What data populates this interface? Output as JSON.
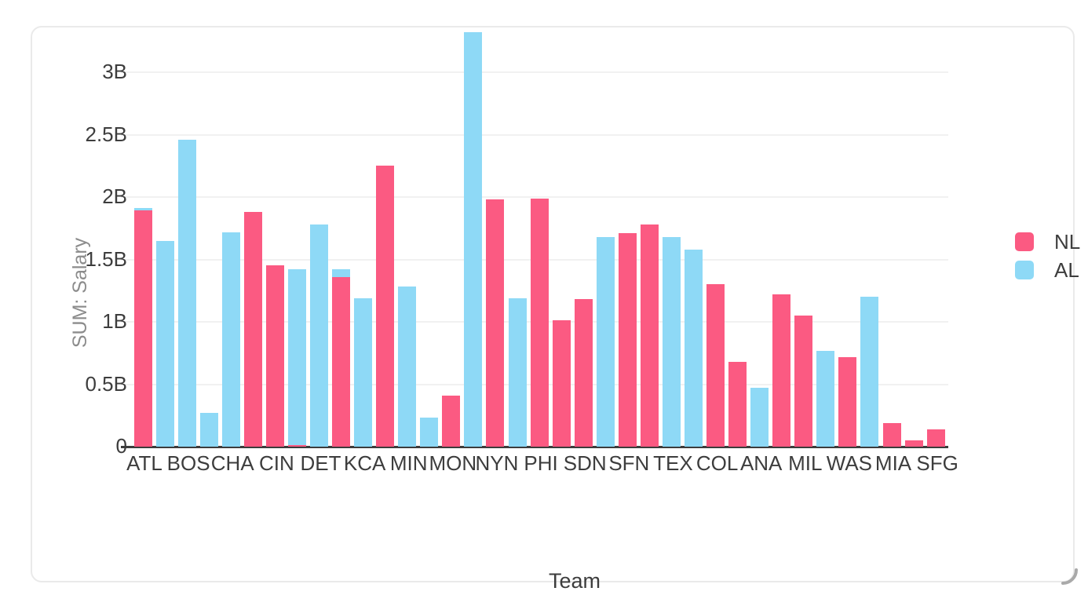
{
  "page": {
    "background": "#ffffff",
    "card_border": "#eaeaea"
  },
  "chart_data": {
    "type": "bar",
    "title": "",
    "xlabel": "Team",
    "ylabel": "SUM: Salary",
    "unit": "B",
    "ylim": [
      0,
      3.4
    ],
    "grid": true,
    "legend_position": "right",
    "x_labels_shown_every_other_bar": true,
    "y_ticks": [
      {
        "label": "3B",
        "value": 3
      },
      {
        "label": "2.5B",
        "value": 2.5
      },
      {
        "label": "2B",
        "value": 2
      },
      {
        "label": "1.5B",
        "value": 1.5
      },
      {
        "label": "1B",
        "value": 1
      },
      {
        "label": "0.5B",
        "value": 0.5
      },
      {
        "label": "0",
        "value": 0
      }
    ],
    "legend": {
      "items": [
        {
          "label": "NL",
          "color": "#fb5a82"
        },
        {
          "label": "AL",
          "color": "#8ed9f6"
        }
      ]
    },
    "bars": [
      {
        "label": "ATL",
        "NL": 1.89,
        "AL": 1.91
      },
      {
        "label": "",
        "AL": 1.65
      },
      {
        "label": "BOS",
        "AL": 2.46
      },
      {
        "label": "",
        "AL": 0.27
      },
      {
        "label": "CHA",
        "AL": 1.72
      },
      {
        "label": "",
        "NL": 1.88
      },
      {
        "label": "CIN",
        "NL": 1.45
      },
      {
        "label": "",
        "NL": 0.015,
        "AL": 1.42
      },
      {
        "label": "DET",
        "AL": 1.78
      },
      {
        "label": "",
        "NL": 1.36,
        "AL": 1.42
      },
      {
        "label": "KCA",
        "AL": 1.19
      },
      {
        "label": "",
        "NL": 2.25
      },
      {
        "label": "MIN",
        "AL": 1.28
      },
      {
        "label": "",
        "AL": 0.23
      },
      {
        "label": "MON",
        "NL": 0.41
      },
      {
        "label": "",
        "AL": 3.32
      },
      {
        "label": "NYN",
        "NL": 1.98
      },
      {
        "label": "",
        "AL": 1.19
      },
      {
        "label": "PHI",
        "NL": 1.99
      },
      {
        "label": "",
        "NL": 1.01
      },
      {
        "label": "SDN",
        "NL": 1.18
      },
      {
        "label": "",
        "AL": 1.68
      },
      {
        "label": "SFN",
        "NL": 1.71
      },
      {
        "label": "",
        "NL": 1.78
      },
      {
        "label": "TEX",
        "AL": 1.68
      },
      {
        "label": "",
        "AL": 1.58
      },
      {
        "label": "COL",
        "NL": 1.3
      },
      {
        "label": "",
        "NL": 0.68
      },
      {
        "label": "ANA",
        "AL": 0.47
      },
      {
        "label": "",
        "NL": 1.22
      },
      {
        "label": "MIL",
        "NL": 1.05
      },
      {
        "label": "",
        "AL": 0.77
      },
      {
        "label": "WAS",
        "NL": 0.72
      },
      {
        "label": "",
        "AL": 1.2
      },
      {
        "label": "MIA",
        "NL": 0.19
      },
      {
        "label": "",
        "NL": 0.05
      },
      {
        "label": "SFG",
        "NL": 0.14
      }
    ]
  }
}
